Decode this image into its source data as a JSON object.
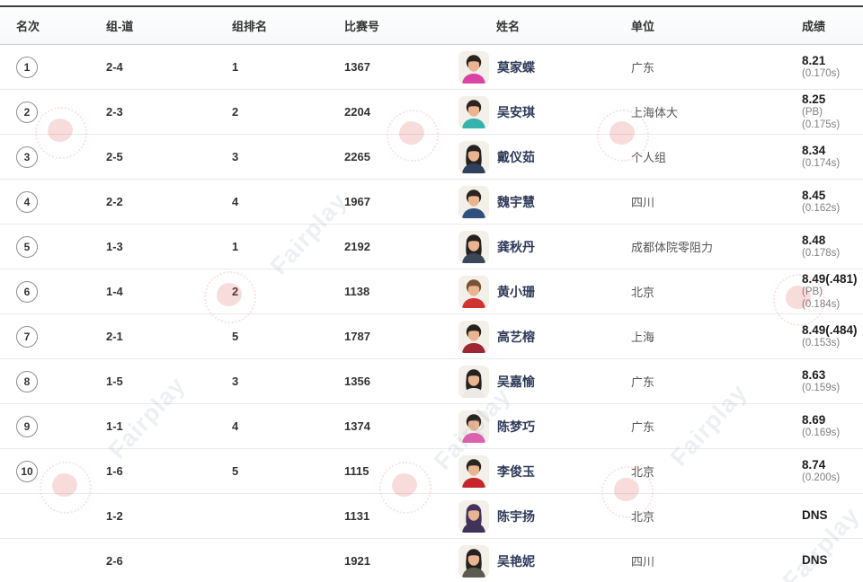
{
  "table": {
    "columns": [
      {
        "key": "rank",
        "label": "名次"
      },
      {
        "key": "group_lane",
        "label": "组-道"
      },
      {
        "key": "group_rank",
        "label": "组排名"
      },
      {
        "key": "bib",
        "label": "比赛号"
      },
      {
        "key": "name",
        "label": "姓名"
      },
      {
        "key": "unit",
        "label": "单位"
      },
      {
        "key": "result",
        "label": "成绩"
      }
    ],
    "rows": [
      {
        "rank": "1",
        "group_lane": "2-4",
        "group_rank": "1",
        "bib": "1367",
        "name": "莫家蝶",
        "unit": "广东",
        "result": {
          "main": "8.21",
          "notes": [
            "(0.170s)"
          ]
        },
        "avatar": {
          "shirt": "#d944a4",
          "hair": "#2b2321",
          "long_hair": false
        }
      },
      {
        "rank": "2",
        "group_lane": "2-3",
        "group_rank": "2",
        "bib": "2204",
        "name": "吴安琪",
        "unit": "上海体大",
        "result": {
          "main": "8.25",
          "notes": [
            "(PB)",
            "(0.175s)"
          ]
        },
        "avatar": {
          "shirt": "#35b3ae",
          "hair": "#2b2321",
          "long_hair": false
        }
      },
      {
        "rank": "3",
        "group_lane": "2-5",
        "group_rank": "3",
        "bib": "2265",
        "name": "戴仪茹",
        "unit": "个人组",
        "result": {
          "main": "8.34",
          "notes": [
            "(0.174s)"
          ]
        },
        "avatar": {
          "shirt": "#2f3f5c",
          "hair": "#26201e",
          "long_hair": true
        }
      },
      {
        "rank": "4",
        "group_lane": "2-2",
        "group_rank": "4",
        "bib": "1967",
        "name": "魏宇慧",
        "unit": "四川",
        "result": {
          "main": "8.45",
          "notes": [
            "(0.162s)"
          ]
        },
        "avatar": {
          "shirt": "#2f4f7e",
          "hair": "#2b2321",
          "long_hair": false
        }
      },
      {
        "rank": "5",
        "group_lane": "1-3",
        "group_rank": "1",
        "bib": "2192",
        "name": "龚秋丹",
        "unit": "成都体院零阻力",
        "result": {
          "main": "8.48",
          "notes": [
            "(0.178s)"
          ]
        },
        "avatar": {
          "shirt": "#3c4659",
          "hair": "#26201e",
          "long_hair": true
        }
      },
      {
        "rank": "6",
        "group_lane": "1-4",
        "group_rank": "2",
        "bib": "1138",
        "name": "黄小珊",
        "unit": "北京",
        "result": {
          "main": "8.49(.481)",
          "notes": [
            "(PB)",
            "(0.184s)"
          ]
        },
        "avatar": {
          "shirt": "#cf3430",
          "hair": "#7a5233",
          "long_hair": false
        }
      },
      {
        "rank": "7",
        "group_lane": "2-1",
        "group_rank": "5",
        "bib": "1787",
        "name": "高艺榕",
        "unit": "上海",
        "result": {
          "main": "8.49(.484)",
          "notes": [
            "(0.153s)"
          ]
        },
        "avatar": {
          "shirt": "#9c2833",
          "hair": "#26201e",
          "long_hair": false
        }
      },
      {
        "rank": "8",
        "group_lane": "1-5",
        "group_rank": "3",
        "bib": "1356",
        "name": "吴嘉愉",
        "unit": "广东",
        "result": {
          "main": "8.63",
          "notes": [
            "(0.159s)"
          ]
        },
        "avatar": {
          "shirt": "#eceae6",
          "hair": "#26201e",
          "long_hair": true
        }
      },
      {
        "rank": "9",
        "group_lane": "1-1",
        "group_rank": "4",
        "bib": "1374",
        "name": "陈梦巧",
        "unit": "广东",
        "result": {
          "main": "8.69",
          "notes": [
            "(0.169s)"
          ]
        },
        "avatar": {
          "shirt": "#dd5fae",
          "hair": "#2b2321",
          "long_hair": false
        }
      },
      {
        "rank": "10",
        "group_lane": "1-6",
        "group_rank": "5",
        "bib": "1115",
        "name": "李俊玉",
        "unit": "北京",
        "result": {
          "main": "8.74",
          "notes": [
            "(0.200s)"
          ]
        },
        "avatar": {
          "shirt": "#c4262c",
          "hair": "#2b2321",
          "long_hair": false
        }
      },
      {
        "rank": "",
        "group_lane": "1-2",
        "group_rank": "",
        "bib": "1131",
        "name": "陈宇扬",
        "unit": "北京",
        "result": {
          "main": "DNS",
          "notes": []
        },
        "avatar": {
          "shirt": "#3f3458",
          "hair": "#43315e",
          "long_hair": true
        }
      },
      {
        "rank": "",
        "group_lane": "2-6",
        "group_rank": "",
        "bib": "1921",
        "name": "吴艳妮",
        "unit": "四川",
        "result": {
          "main": "DNS",
          "notes": []
        },
        "avatar": {
          "shirt": "#5c5b4f",
          "hair": "#26201e",
          "long_hair": true
        }
      }
    ]
  },
  "watermark": {
    "text": "Fairplay"
  }
}
